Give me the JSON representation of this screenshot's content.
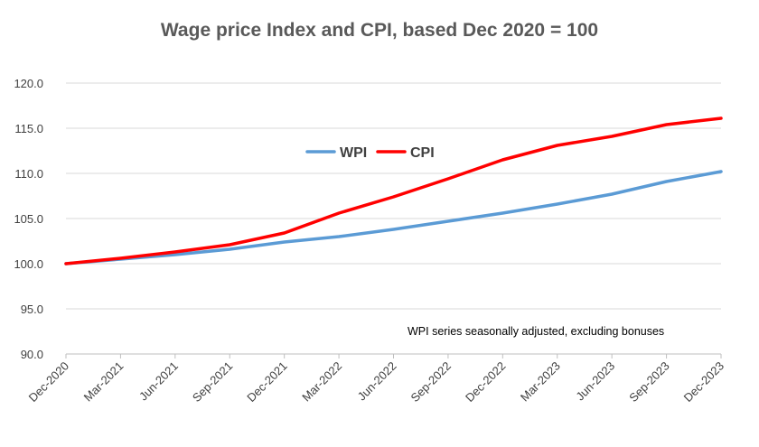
{
  "chart_data": {
    "type": "line",
    "title": "Wage price Index and CPI, based Dec 2020 = 100",
    "xlabel": "",
    "ylabel": "",
    "categories": [
      "Dec-2020",
      "Mar-2021",
      "Jun-2021",
      "Sep-2021",
      "Dec-2021",
      "Mar-2022",
      "Jun-2022",
      "Sep-2022",
      "Dec-2022",
      "Mar-2023",
      "Jun-2023",
      "Sep-2023",
      "Dec-2023"
    ],
    "ylim": [
      90,
      120
    ],
    "yticks": [
      "90.0",
      "95.0",
      "100.0",
      "105.0",
      "110.0",
      "115.0",
      "120.0"
    ],
    "grid": true,
    "legend_position": "center-top",
    "series": [
      {
        "name": "WPI",
        "color": "#5B9BD5",
        "values": [
          100.0,
          100.5,
          101.0,
          101.6,
          102.4,
          103.0,
          103.8,
          104.7,
          105.6,
          106.6,
          107.7,
          109.1,
          110.2
        ]
      },
      {
        "name": "CPI",
        "color": "#FF0000",
        "values": [
          100.0,
          100.6,
          101.3,
          102.1,
          103.4,
          105.6,
          107.4,
          109.4,
          111.5,
          113.1,
          114.1,
          115.4,
          116.1
        ]
      }
    ],
    "annotation": "WPI series seasonally adjusted, excluding bonuses"
  }
}
